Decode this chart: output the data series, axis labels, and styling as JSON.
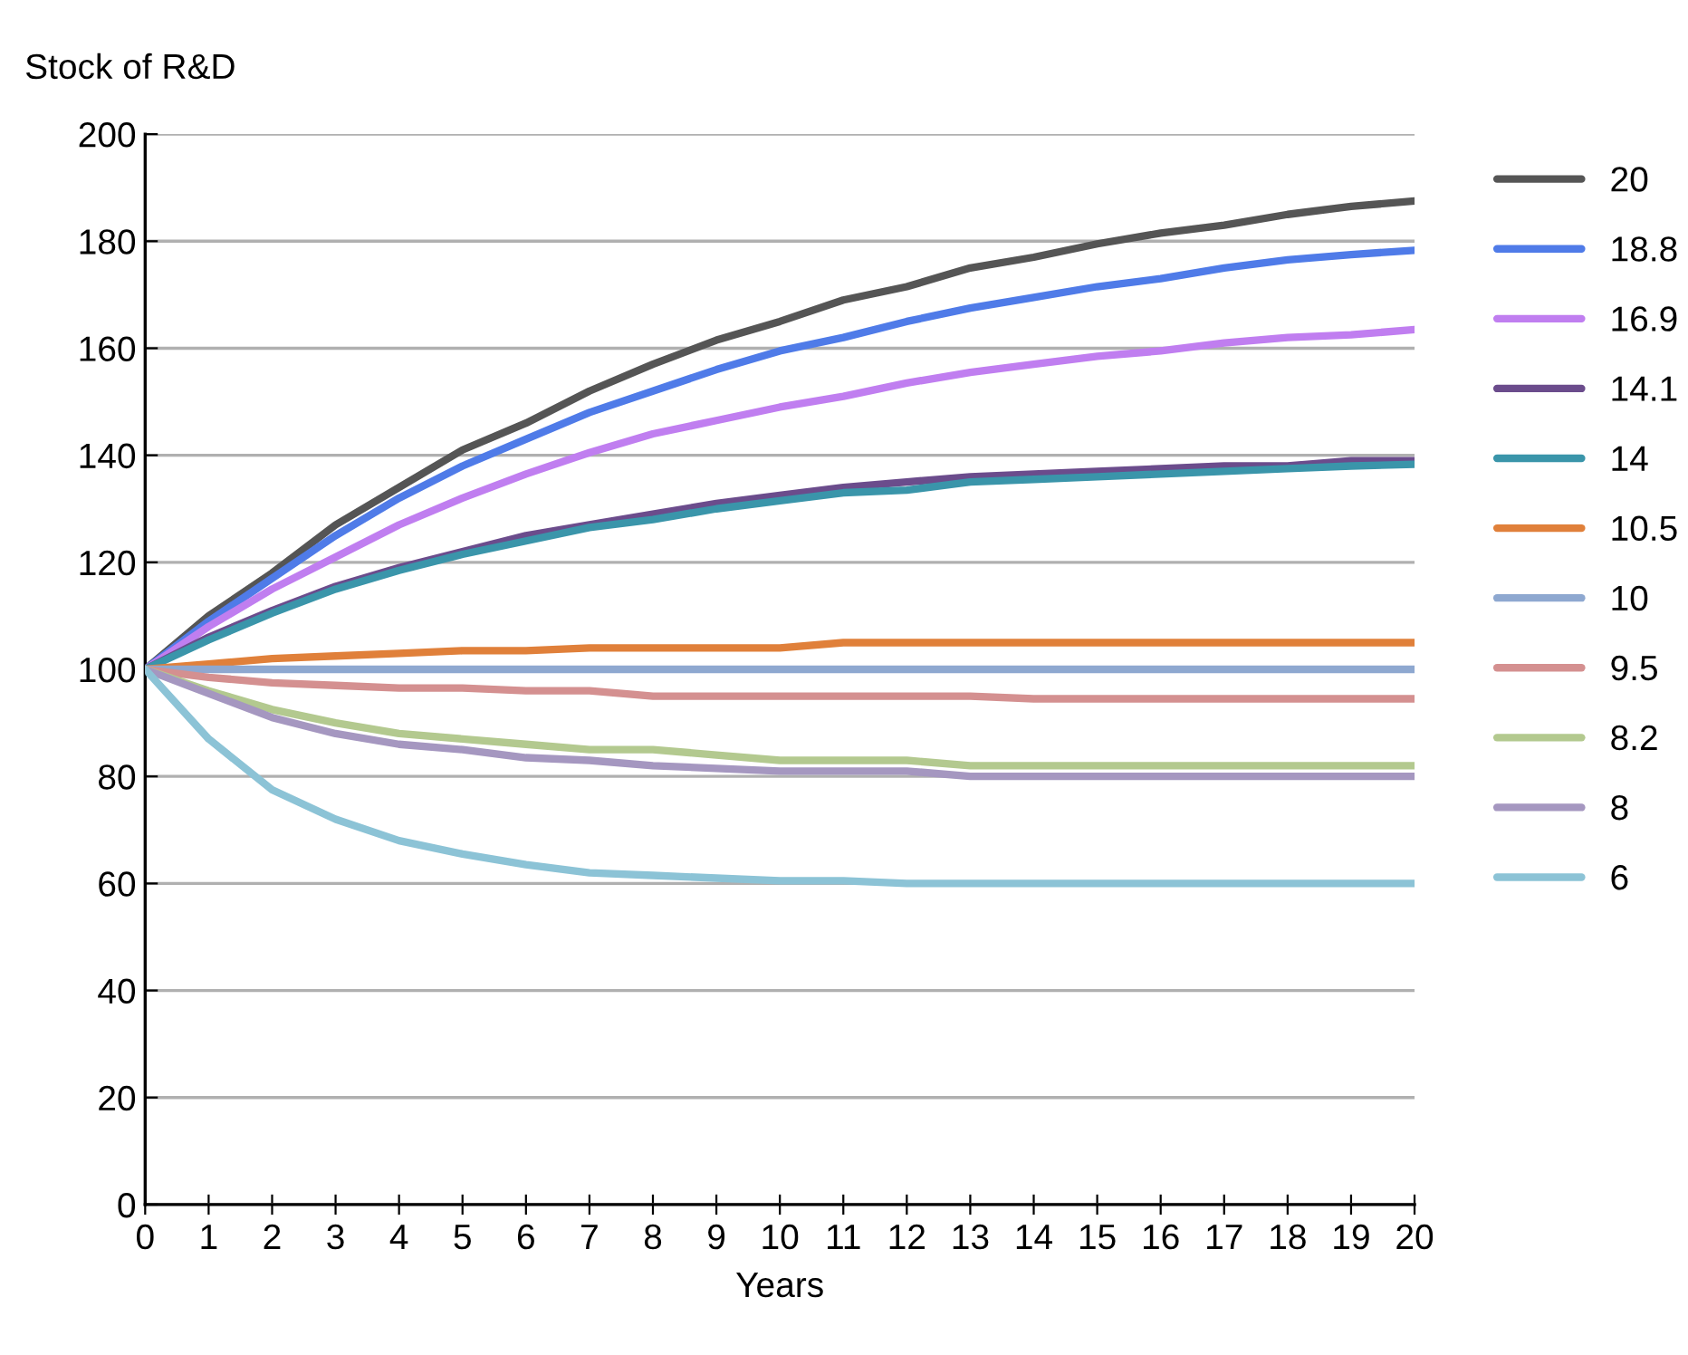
{
  "chart_data": {
    "type": "line",
    "ylabel": "Stock of R&D",
    "xlabel": "Years",
    "x": [
      0,
      1,
      2,
      3,
      4,
      5,
      6,
      7,
      8,
      9,
      10,
      11,
      12,
      13,
      14,
      15,
      16,
      17,
      18,
      19,
      20
    ],
    "xlim": [
      0,
      20
    ],
    "xticks": [
      0,
      1,
      2,
      3,
      4,
      5,
      6,
      7,
      8,
      9,
      10,
      11,
      12,
      13,
      14,
      15,
      16,
      17,
      18,
      19,
      20
    ],
    "ylim": [
      0,
      200
    ],
    "yticks": [
      0,
      20,
      40,
      60,
      80,
      100,
      120,
      140,
      160,
      180,
      200
    ],
    "grid": "y",
    "legend": "right",
    "marker": "none",
    "line_style": "solid",
    "series": [
      {
        "name": "20",
        "color": "#555555",
        "values": [
          100,
          110,
          118,
          127,
          134,
          141,
          146,
          152,
          157,
          161.5,
          165,
          169,
          171.5,
          175,
          177,
          179.5,
          181.5,
          183,
          185,
          186.5,
          187.5
        ]
      },
      {
        "name": "18.8",
        "color": "#4f7be8",
        "values": [
          100,
          109,
          117,
          125,
          132,
          138,
          143,
          148,
          152,
          156,
          159.5,
          162,
          165,
          167.5,
          169.5,
          171.5,
          173,
          175,
          176.5,
          177.5,
          178.3
        ]
      },
      {
        "name": "16.9",
        "color": "#c07ef0",
        "values": [
          100,
          108,
          115,
          121,
          127,
          132,
          136.5,
          140.5,
          144,
          146.5,
          149,
          151,
          153.5,
          155.5,
          157,
          158.5,
          159.5,
          161,
          162,
          162.5,
          163.5
        ]
      },
      {
        "name": "14.1",
        "color": "#6b4c8c",
        "values": [
          100,
          106,
          111,
          115.5,
          119,
          122,
          125,
          127,
          129,
          131,
          132.5,
          134,
          135,
          136,
          136.5,
          137,
          137.5,
          138,
          138,
          139,
          139
        ]
      },
      {
        "name": "14",
        "color": "#3a95aa",
        "values": [
          100,
          105.5,
          110.5,
          115,
          118.5,
          121.5,
          124,
          126.5,
          128,
          130,
          131.5,
          133,
          133.5,
          135,
          135.5,
          136,
          136.5,
          137,
          137.5,
          138,
          138.3
        ]
      },
      {
        "name": "10.5",
        "color": "#e0803a",
        "values": [
          100,
          101,
          102,
          102.5,
          103,
          103.5,
          103.5,
          104,
          104,
          104,
          104,
          105,
          105,
          105,
          105,
          105,
          105,
          105,
          105,
          105,
          105
        ]
      },
      {
        "name": "10",
        "color": "#8ea8d0",
        "values": [
          100,
          100,
          100,
          100,
          100,
          100,
          100,
          100,
          100,
          100,
          100,
          100,
          100,
          100,
          100,
          100,
          100,
          100,
          100,
          100,
          100
        ]
      },
      {
        "name": "9.5",
        "color": "#d49090",
        "values": [
          100,
          98.5,
          97.5,
          97,
          96.5,
          96.5,
          96,
          96,
          95,
          95,
          95,
          95,
          95,
          95,
          94.5,
          94.5,
          94.5,
          94.5,
          94.5,
          94.5,
          94.5
        ]
      },
      {
        "name": "8.2",
        "color": "#b3c98f",
        "values": [
          100,
          96,
          92.5,
          90,
          88,
          87,
          86,
          85,
          85,
          84,
          83,
          83,
          83,
          82,
          82,
          82,
          82,
          82,
          82,
          82,
          82
        ]
      },
      {
        "name": "8",
        "color": "#a597c0",
        "values": [
          100,
          95.5,
          91,
          88,
          86,
          85,
          83.5,
          83,
          82,
          81.5,
          81,
          81,
          81,
          80,
          80,
          80,
          80,
          80,
          80,
          80,
          80
        ]
      },
      {
        "name": "6",
        "color": "#8cc3d6",
        "values": [
          100,
          87,
          77.5,
          72,
          68,
          65.5,
          63.5,
          62,
          61.5,
          61,
          60.5,
          60.5,
          60,
          60,
          60,
          60,
          60,
          60,
          60,
          60,
          60
        ]
      }
    ]
  }
}
